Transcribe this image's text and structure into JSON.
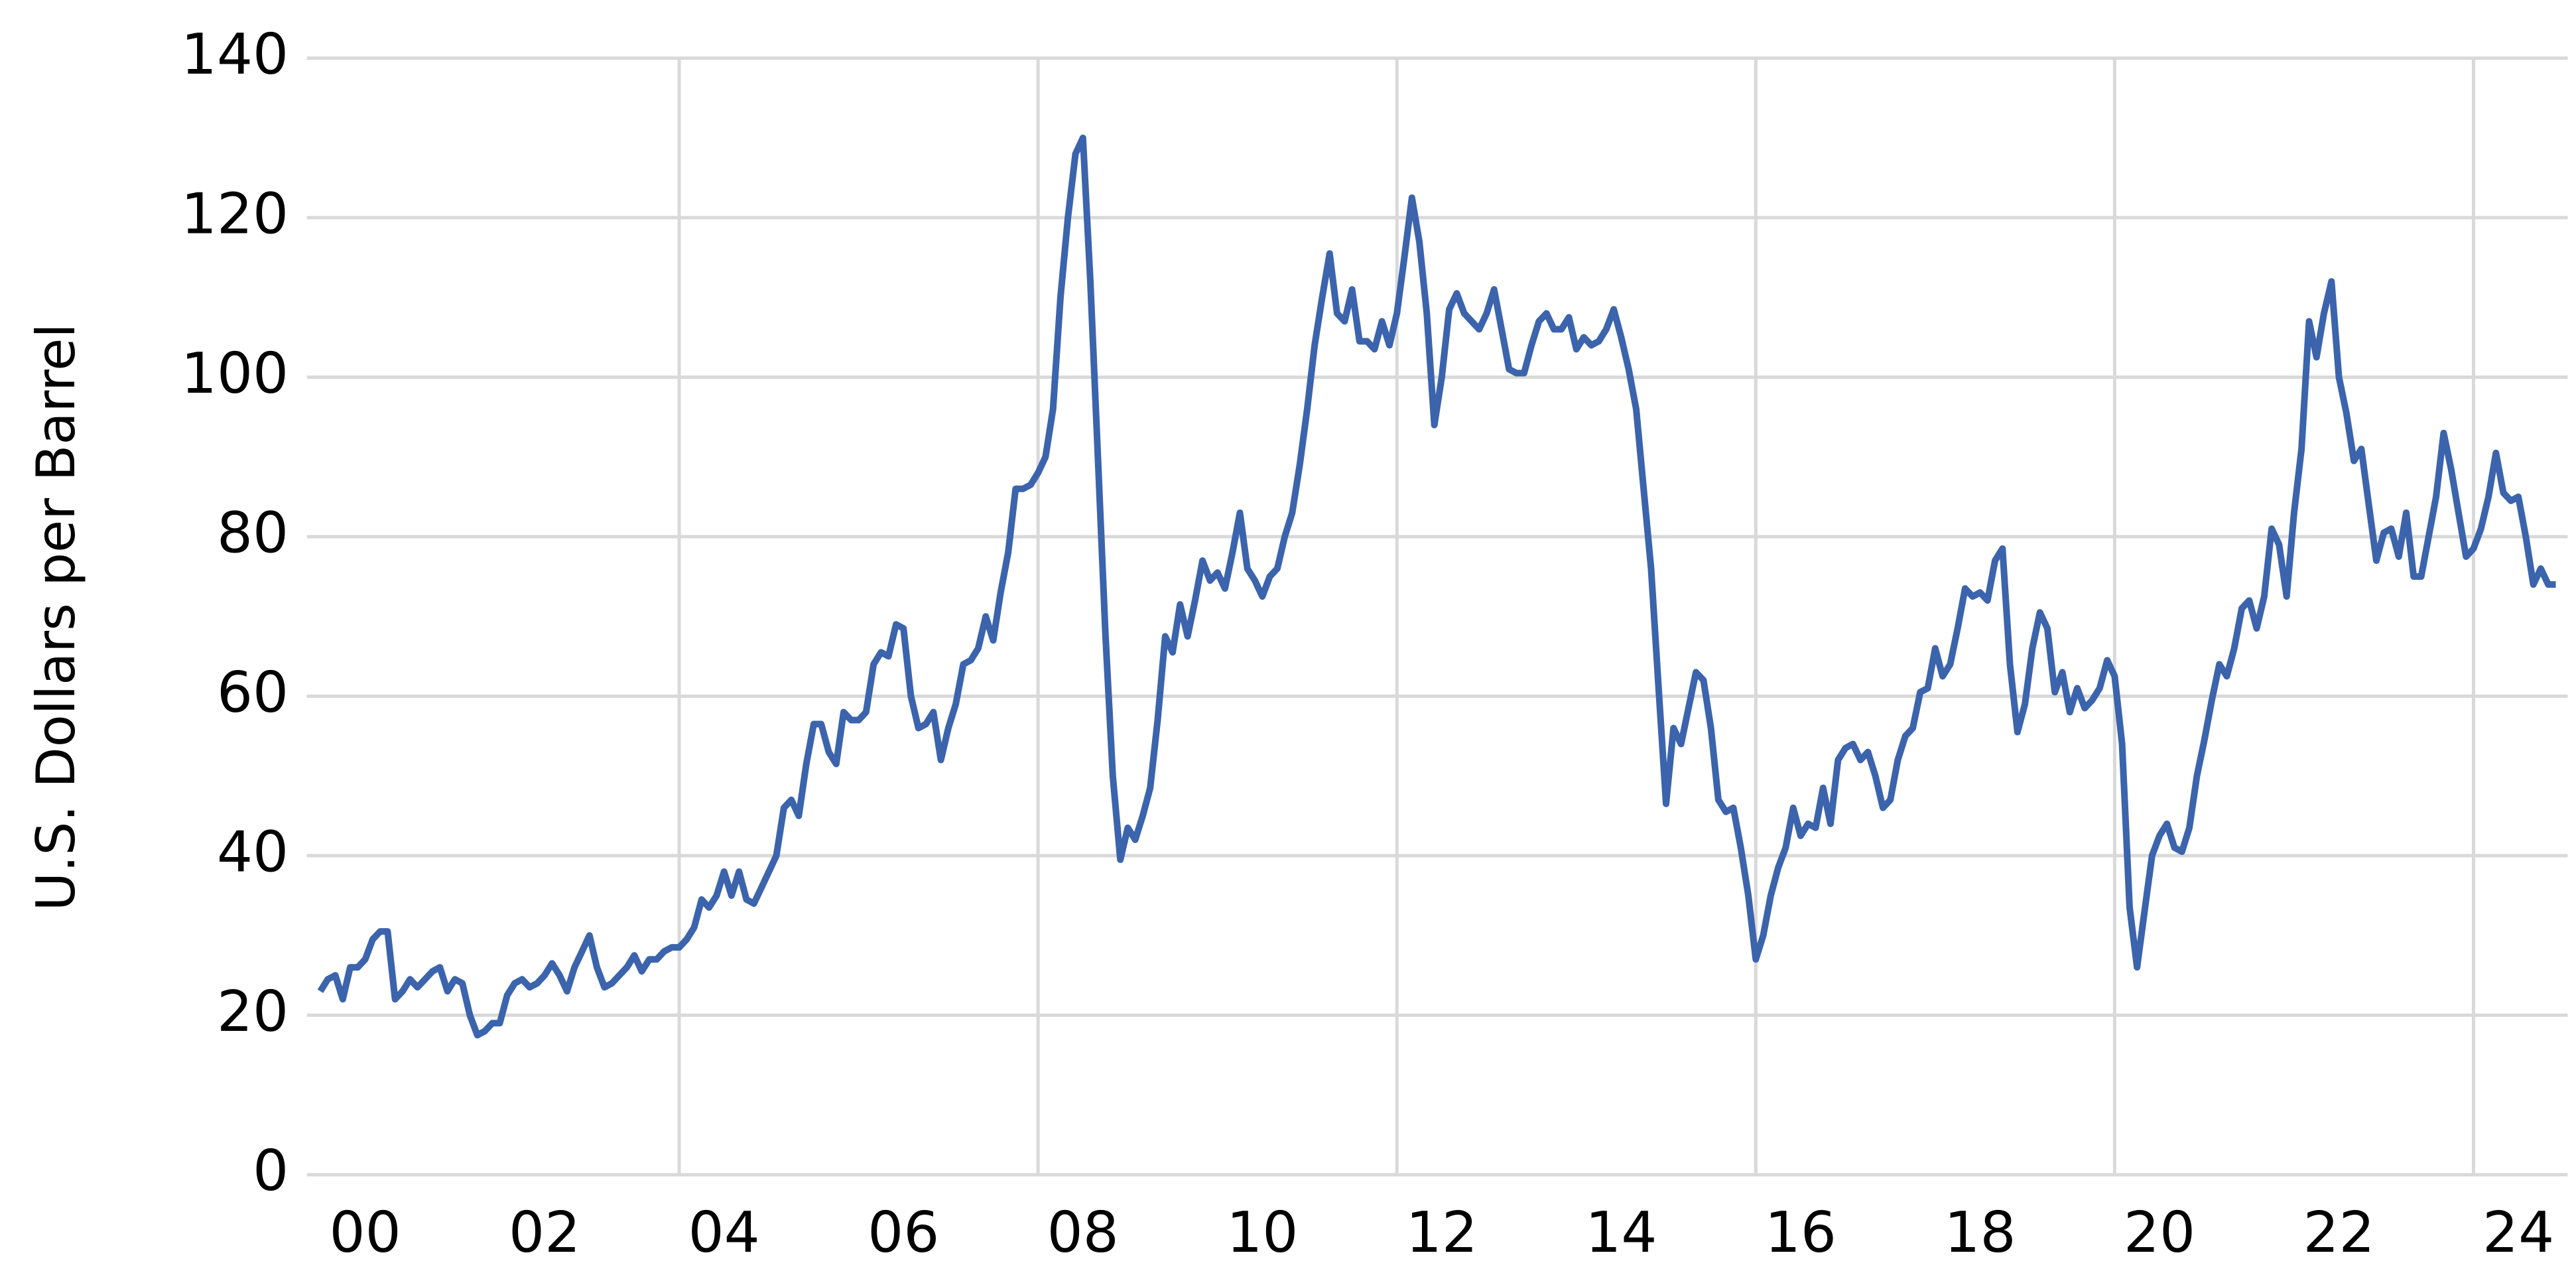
{
  "chart_data": {
    "type": "line",
    "ylabel": "U.S. Dollars per Barrel",
    "color": "#3b64ad",
    "grid": true,
    "xlim": [
      1999.85,
      2025.05
    ],
    "xticks": [
      {
        "value": 2000.5,
        "label": "00"
      },
      {
        "value": 2002.5,
        "label": "02"
      },
      {
        "value": 2004.5,
        "label": "04"
      },
      {
        "value": 2006.5,
        "label": "06"
      },
      {
        "value": 2008.5,
        "label": "08"
      },
      {
        "value": 2010.5,
        "label": "10"
      },
      {
        "value": 2012.5,
        "label": "12"
      },
      {
        "value": 2014.5,
        "label": "14"
      },
      {
        "value": 2016.5,
        "label": "16"
      },
      {
        "value": 2018.5,
        "label": "18"
      },
      {
        "value": 2020.5,
        "label": "20"
      },
      {
        "value": 2022.5,
        "label": "22"
      },
      {
        "value": 2024.5,
        "label": "24"
      }
    ],
    "xgrid": [
      2004,
      2008,
      2012,
      2016,
      2020,
      2024
    ],
    "ylim": [
      0,
      140
    ],
    "yticks": [
      0,
      20,
      40,
      60,
      80,
      100,
      120,
      140
    ],
    "x": [
      2000,
      2000.083,
      2000.167,
      2000.25,
      2000.333,
      2000.417,
      2000.5,
      2000.583,
      2000.667,
      2000.75,
      2000.833,
      2000.917,
      2001,
      2001.083,
      2001.167,
      2001.25,
      2001.333,
      2001.417,
      2001.5,
      2001.583,
      2001.667,
      2001.75,
      2001.833,
      2001.917,
      2002,
      2002.083,
      2002.167,
      2002.25,
      2002.333,
      2002.417,
      2002.5,
      2002.583,
      2002.667,
      2002.75,
      2002.833,
      2002.917,
      2003,
      2003.083,
      2003.167,
      2003.25,
      2003.333,
      2003.417,
      2003.5,
      2003.583,
      2003.667,
      2003.75,
      2003.833,
      2003.917,
      2004,
      2004.083,
      2004.167,
      2004.25,
      2004.333,
      2004.417,
      2004.5,
      2004.583,
      2004.667,
      2004.75,
      2004.833,
      2004.917,
      2005,
      2005.083,
      2005.167,
      2005.25,
      2005.333,
      2005.417,
      2005.5,
      2005.583,
      2005.667,
      2005.75,
      2005.833,
      2005.917,
      2006,
      2006.083,
      2006.167,
      2006.25,
      2006.333,
      2006.417,
      2006.5,
      2006.583,
      2006.667,
      2006.75,
      2006.833,
      2006.917,
      2007,
      2007.083,
      2007.167,
      2007.25,
      2007.333,
      2007.417,
      2007.5,
      2007.583,
      2007.667,
      2007.75,
      2007.833,
      2007.917,
      2008,
      2008.083,
      2008.167,
      2008.25,
      2008.333,
      2008.417,
      2008.5,
      2008.583,
      2008.667,
      2008.75,
      2008.833,
      2008.917,
      2009,
      2009.083,
      2009.167,
      2009.25,
      2009.333,
      2009.417,
      2009.5,
      2009.583,
      2009.667,
      2009.75,
      2009.833,
      2009.917,
      2010,
      2010.083,
      2010.167,
      2010.25,
      2010.333,
      2010.417,
      2010.5,
      2010.583,
      2010.667,
      2010.75,
      2010.833,
      2010.917,
      2011,
      2011.083,
      2011.167,
      2011.25,
      2011.333,
      2011.417,
      2011.5,
      2011.583,
      2011.667,
      2011.75,
      2011.833,
      2011.917,
      2012,
      2012.083,
      2012.167,
      2012.25,
      2012.333,
      2012.417,
      2012.5,
      2012.583,
      2012.667,
      2012.75,
      2012.833,
      2012.917,
      2013,
      2013.083,
      2013.167,
      2013.25,
      2013.333,
      2013.417,
      2013.5,
      2013.583,
      2013.667,
      2013.75,
      2013.833,
      2013.917,
      2014,
      2014.083,
      2014.167,
      2014.25,
      2014.333,
      2014.417,
      2014.5,
      2014.583,
      2014.667,
      2014.75,
      2014.833,
      2014.917,
      2015,
      2015.083,
      2015.167,
      2015.25,
      2015.333,
      2015.417,
      2015.5,
      2015.583,
      2015.667,
      2015.75,
      2015.833,
      2015.917,
      2016,
      2016.083,
      2016.167,
      2016.25,
      2016.333,
      2016.417,
      2016.5,
      2016.583,
      2016.667,
      2016.75,
      2016.833,
      2016.917,
      2017,
      2017.083,
      2017.167,
      2017.25,
      2017.333,
      2017.417,
      2017.5,
      2017.583,
      2017.667,
      2017.75,
      2017.833,
      2017.917,
      2018,
      2018.083,
      2018.167,
      2018.25,
      2018.333,
      2018.417,
      2018.5,
      2018.583,
      2018.667,
      2018.75,
      2018.833,
      2018.917,
      2019,
      2019.083,
      2019.167,
      2019.25,
      2019.333,
      2019.417,
      2019.5,
      2019.583,
      2019.667,
      2019.75,
      2019.833,
      2019.917,
      2020,
      2020.083,
      2020.167,
      2020.25,
      2020.333,
      2020.417,
      2020.5,
      2020.583,
      2020.667,
      2020.75,
      2020.833,
      2020.917,
      2021,
      2021.083,
      2021.167,
      2021.25,
      2021.333,
      2021.417,
      2021.5,
      2021.583,
      2021.667,
      2021.75,
      2021.833,
      2021.917,
      2022,
      2022.083,
      2022.167,
      2022.25,
      2022.333,
      2022.417,
      2022.5,
      2022.583,
      2022.667,
      2022.75,
      2022.833,
      2022.917,
      2023,
      2023.083,
      2023.167,
      2023.25,
      2023.333,
      2023.417,
      2023.5,
      2023.583,
      2023.667,
      2023.75,
      2023.833,
      2023.917,
      2024,
      2024.083,
      2024.167,
      2024.25,
      2024.333,
      2024.417,
      2024.5,
      2024.583,
      2024.667,
      2024.75,
      2024.833,
      2024.917
    ],
    "values": [
      23,
      24.5,
      25,
      22,
      26,
      26,
      27,
      29.5,
      30.5,
      30.5,
      22,
      23,
      24.5,
      23.5,
      24.5,
      25.5,
      26,
      23,
      24.5,
      24,
      20,
      17.5,
      18,
      19,
      19,
      22.5,
      24,
      24.5,
      23.5,
      24,
      25,
      26.5,
      25,
      23,
      26,
      28,
      30,
      26,
      23.5,
      24,
      25,
      26,
      27.5,
      25.5,
      27,
      27,
      28,
      28.5,
      28.5,
      29.5,
      31,
      34.5,
      33.5,
      35,
      38,
      35,
      38,
      34.5,
      34,
      36,
      38,
      40,
      46,
      47,
      45,
      51.5,
      56.5,
      56.5,
      53,
      51.5,
      58,
      57,
      57,
      58,
      64,
      65.5,
      65,
      69,
      68.5,
      60,
      56,
      56.5,
      58,
      52,
      56,
      59,
      64,
      64.5,
      66,
      70,
      67,
      73,
      78,
      86,
      86,
      86.5,
      88,
      90,
      96,
      110,
      120,
      128,
      130,
      112,
      90,
      68,
      50,
      39.5,
      43.5,
      42,
      45,
      48.5,
      57,
      67.5,
      65.5,
      71.5,
      67.5,
      72,
      77,
      74.5,
      75.5,
      73.5,
      78,
      83,
      76,
      74.5,
      72.5,
      75,
      76,
      80,
      83,
      89,
      96,
      104,
      110,
      115.5,
      108,
      107,
      111,
      104.5,
      104.5,
      103.5,
      107,
      104,
      108,
      115,
      122.5,
      117,
      108,
      94,
      100,
      108.5,
      110.5,
      108,
      107,
      106,
      108,
      111,
      106,
      101,
      100.5,
      100.5,
      104,
      107,
      108,
      106,
      106,
      107.5,
      103.5,
      105,
      104,
      104.5,
      106,
      108.5,
      105,
      101,
      96,
      86,
      76,
      61,
      46.5,
      56,
      54,
      58.5,
      63,
      62,
      56,
      47,
      45.5,
      46,
      41,
      35,
      27,
      30,
      35,
      38.5,
      41,
      46,
      42.5,
      44,
      43.5,
      48.5,
      44,
      52,
      53.5,
      54,
      52,
      53,
      50,
      46,
      47,
      52,
      55,
      56,
      60.5,
      61,
      66,
      62.5,
      64,
      68.5,
      73.5,
      72.5,
      73,
      72,
      77,
      78.5,
      64,
      55.5,
      59,
      66,
      70.5,
      68.5,
      60.5,
      63,
      58,
      61,
      58.5,
      59.5,
      61,
      64.5,
      62.5,
      54,
      33.5,
      26,
      33,
      40,
      42.5,
      44,
      41,
      40.5,
      43.5,
      50,
      54.5,
      59.5,
      64,
      62.5,
      66,
      71,
      72,
      68.5,
      72.5,
      81,
      79,
      72.5,
      83,
      91,
      107,
      102.5,
      108,
      112,
      100,
      95.5,
      89.5,
      91,
      84,
      77,
      80.5,
      81,
      77.5,
      83,
      75,
      75,
      80,
      85,
      93,
      88.5,
      83,
      77.5,
      78.5,
      81,
      85,
      90.5,
      85.5,
      84.5,
      85,
      80,
      74,
      76,
      74,
      74
    ]
  }
}
